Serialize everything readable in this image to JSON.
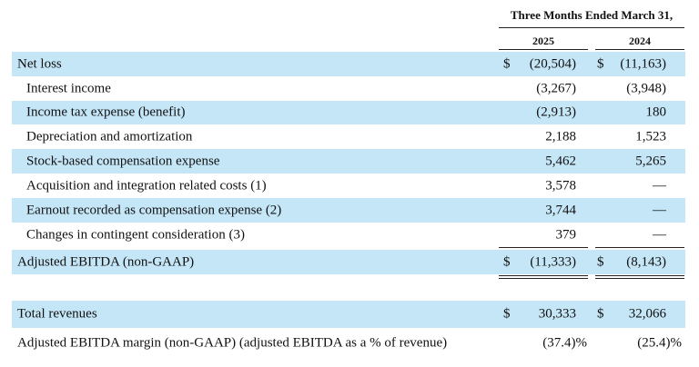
{
  "header": {
    "period": "Three Months Ended March 31,",
    "year_a": "2025",
    "year_b": "2024"
  },
  "rows": [
    {
      "label": "Net loss",
      "dollar_a": "$",
      "a": "(20,504)",
      "dollar_b": "$",
      "b": "(11,163)"
    },
    {
      "label": "Interest income",
      "a": "(3,267)",
      "b": "(3,948)"
    },
    {
      "label": "Income tax expense (benefit)",
      "a": "(2,913)",
      "b": "180"
    },
    {
      "label": "Depreciation and amortization",
      "a": "2,188",
      "b": "1,523"
    },
    {
      "label": "Stock-based compensation expense",
      "a": "5,462",
      "b": "5,265"
    },
    {
      "label": "Acquisition and integration related costs (1)",
      "a": "3,578",
      "b": "—"
    },
    {
      "label": "Earnout recorded as compensation expense (2)",
      "a": "3,744",
      "b": "—"
    },
    {
      "label": "Changes in contingent consideration (3)",
      "a": "379",
      "b": "—"
    },
    {
      "label": "Adjusted EBITDA (non-GAAP)",
      "dollar_a": "$",
      "a": "(11,333)",
      "dollar_b": "$",
      "b": "(8,143)"
    },
    {
      "label": "Total revenues",
      "dollar_a": "$",
      "a": "30,333",
      "dollar_b": "$",
      "b": "32,066"
    },
    {
      "label": "Adjusted EBITDA margin (non-GAAP) (adjusted EBITDA as a % of revenue)",
      "a": "(37.4)%",
      "b": "(25.4)%"
    }
  ]
}
